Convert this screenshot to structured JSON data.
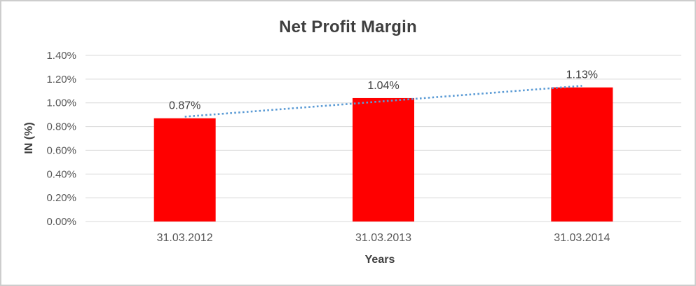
{
  "chart_data": {
    "type": "bar",
    "title": "Net Profit Margin",
    "xlabel": "Years",
    "ylabel": "IN (%)",
    "categories": [
      "31.03.2012",
      "31.03.2013",
      "31.03.2014"
    ],
    "values": [
      0.87,
      1.04,
      1.13
    ],
    "data_labels": [
      "0.87%",
      "1.04%",
      "1.13%"
    ],
    "ytick_labels": [
      "0.00%",
      "0.20%",
      "0.40%",
      "0.60%",
      "0.80%",
      "1.00%",
      "1.20%",
      "1.40%"
    ],
    "ytick_step": 0.2,
    "ylim": [
      0,
      1.4
    ],
    "grid": true,
    "legend": "none",
    "bar_color": "#ff0000",
    "trendline": {
      "type": "linear",
      "style": "dotted",
      "color": "#5b9bd5"
    },
    "colors": {
      "gridline": "#d9d9d9",
      "tick_text": "#595959",
      "title_text": "#3f3f3f",
      "data_label_text": "#404040",
      "frame_border": "#cdcdcd",
      "background": "#ffffff"
    }
  }
}
